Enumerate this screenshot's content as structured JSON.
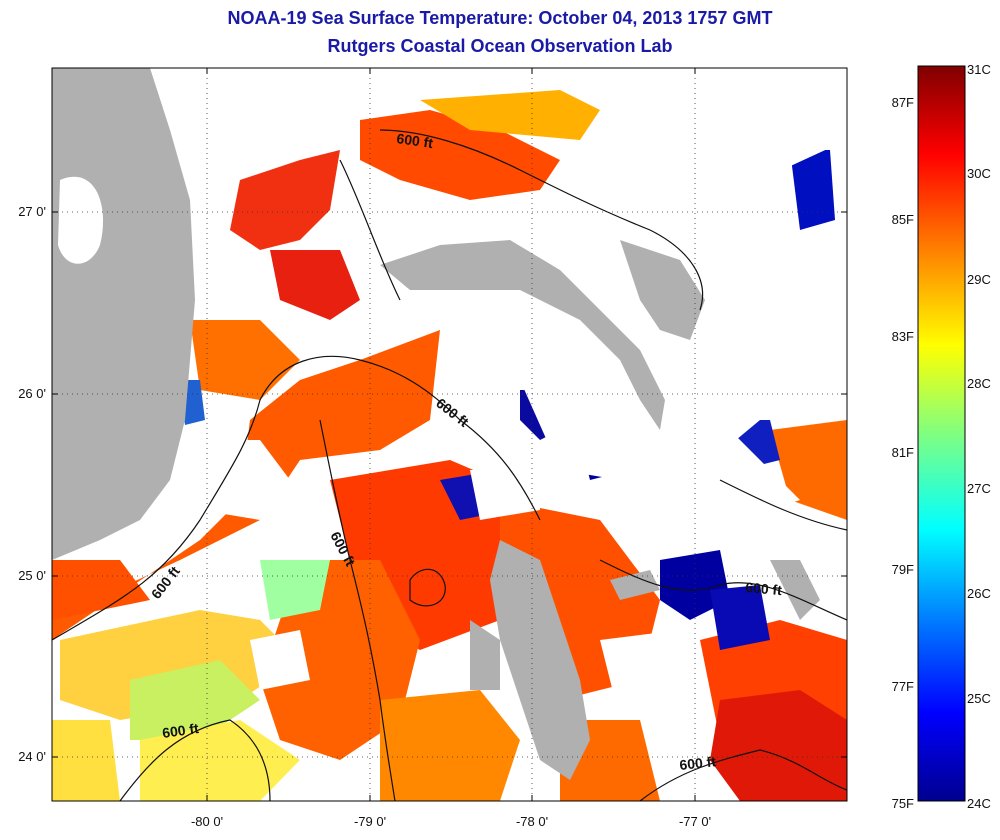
{
  "title": {
    "line1": "NOAA-19 Sea Surface Temperature:  October 04, 2013 1757 GMT",
    "line2": "Rutgers Coastal Ocean Observation Lab"
  },
  "map": {
    "lon_ticks": [
      "-80 0'",
      "-79 0'",
      "-78 0'",
      "-77 0'"
    ],
    "lat_ticks": [
      "27 0'",
      "26 0'",
      "25 0'",
      "24 0'"
    ],
    "contour_label": "600 ft",
    "colors": {
      "land": "#b0b0b0",
      "cloud": "#ffffff",
      "warm": "#ff4000",
      "hot": "#e01000",
      "cool": "#00008f"
    }
  },
  "colorbar": {
    "celsius_labels": [
      "31C",
      "30C",
      "29C",
      "28C",
      "27C",
      "26C",
      "25C",
      "24C"
    ],
    "fahrenheit_labels": [
      "87F",
      "85F",
      "83F",
      "81F",
      "79F",
      "77F",
      "75F"
    ],
    "scale_colors": [
      "#800000",
      "#ff0000",
      "#ff8000",
      "#ffff00",
      "#80ff80",
      "#00ffff",
      "#0080ff",
      "#0000ff",
      "#00008f"
    ]
  }
}
